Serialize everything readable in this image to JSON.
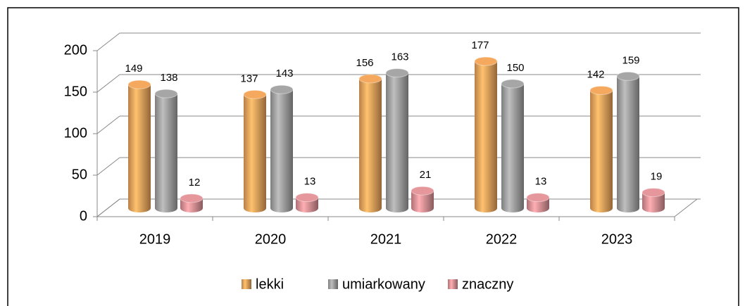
{
  "chart_data": {
    "type": "bar",
    "categories": [
      "2019",
      "2020",
      "2021",
      "2022",
      "2023"
    ],
    "series": [
      {
        "name": "lekki",
        "color": "#f5a95f",
        "values": [
          149,
          137,
          156,
          177,
          142
        ]
      },
      {
        "name": "umiarkowany",
        "color": "#a6a6a6",
        "values": [
          138,
          143,
          163,
          150,
          159
        ]
      },
      {
        "name": "znaczny",
        "color": "#e5979c",
        "values": [
          12,
          13,
          21,
          13,
          19
        ]
      }
    ],
    "ylim": [
      0,
      200
    ],
    "yticks": [
      0,
      50,
      100,
      150,
      200
    ],
    "grid": true,
    "legend": "bottom"
  }
}
